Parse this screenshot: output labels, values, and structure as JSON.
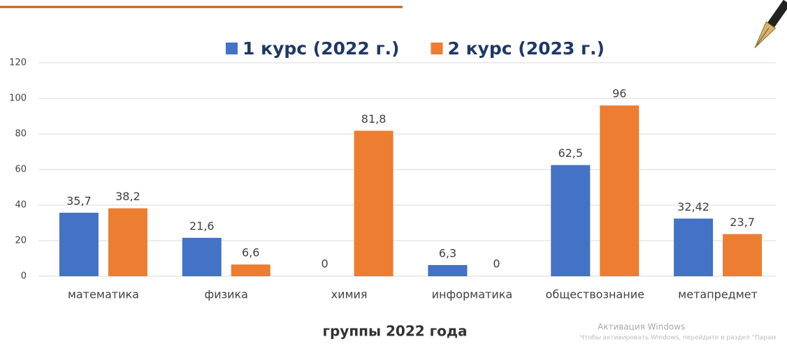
{
  "chart_data": {
    "type": "bar",
    "categories": [
      "математика",
      "физика",
      "химия",
      "информатика",
      "обществознание",
      "метапредмет"
    ],
    "series": [
      {
        "name": "1 курс (2022 г.)",
        "color": "#4472c4",
        "values": [
          35.7,
          21.6,
          0,
          6.3,
          62.5,
          32.42
        ],
        "value_labels": [
          "35,7",
          "21,6",
          "0",
          "6,3",
          "62,5",
          "32,42"
        ]
      },
      {
        "name": "2 курс (2023 г.)",
        "color": "#ed7d31",
        "values": [
          38.2,
          6.6,
          81.8,
          0,
          96,
          23.7
        ],
        "value_labels": [
          "38,2",
          "6,6",
          "81,8",
          "0",
          "96",
          "23,7"
        ]
      }
    ],
    "xlabel": "группы 2022 года",
    "ylim": [
      0,
      120
    ],
    "yticks": [
      0,
      20,
      40,
      60,
      80,
      100,
      120
    ],
    "grid": true,
    "legend": "top"
  },
  "watermark": {
    "title": "Активация Windows",
    "text": "Чтобы активировать Windows, перейдите в раздел \"Парам"
  }
}
